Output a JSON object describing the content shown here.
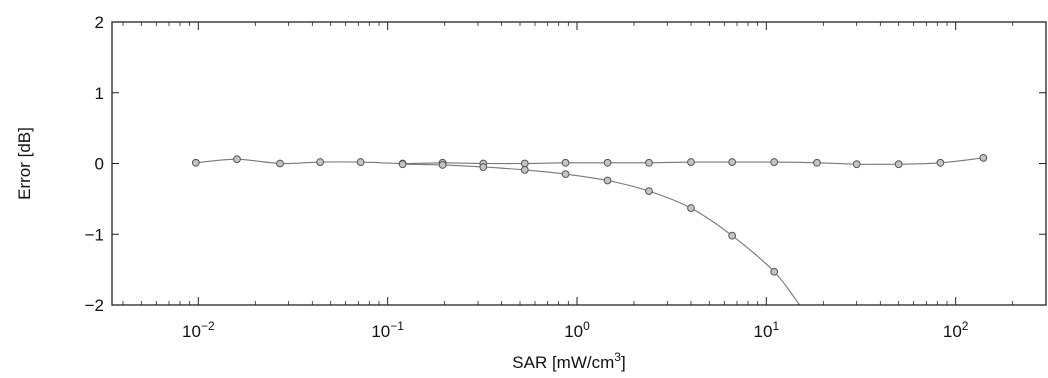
{
  "chart_data": {
    "type": "line",
    "title": "",
    "xlabel_base": "SAR [mW/cm",
    "xlabel_sup": "3",
    "xlabel_tail": "]",
    "ylabel": "Error [dB]",
    "xscale": "log",
    "xlim": [
      0.0035,
      300
    ],
    "ylim": [
      -2,
      2
    ],
    "grid": false,
    "legend": "none",
    "x_ticks": [
      {
        "value": 0.01,
        "base": "10",
        "exp": "−2"
      },
      {
        "value": 0.1,
        "base": "10",
        "exp": "−1"
      },
      {
        "value": 1,
        "base": "10",
        "exp": "0"
      },
      {
        "value": 10,
        "base": "10",
        "exp": "1"
      },
      {
        "value": 100,
        "base": "10",
        "exp": "2"
      }
    ],
    "y_ticks": [
      {
        "value": 2,
        "label": "2"
      },
      {
        "value": 1,
        "label": "1"
      },
      {
        "value": 0,
        "label": "0"
      },
      {
        "value": -1,
        "label": "−1"
      },
      {
        "value": -2,
        "label": "−2"
      }
    ],
    "series": [
      {
        "x": [
          0.0097,
          0.016,
          0.027,
          0.044,
          0.072,
          0.12,
          0.195,
          0.32,
          0.53,
          0.87,
          1.45,
          2.4,
          4.0,
          6.6,
          11,
          18.5,
          30,
          50,
          83,
          140
        ],
        "y": [
          0.01,
          0.06,
          0.0,
          0.02,
          0.02,
          0.0,
          0.01,
          0.0,
          0.0,
          0.01,
          0.01,
          0.01,
          0.02,
          0.02,
          0.02,
          0.01,
          -0.01,
          -0.01,
          0.01,
          0.08
        ],
        "curve_to": null
      },
      {
        "x": [
          0.12,
          0.195,
          0.32,
          0.53,
          0.87,
          1.45,
          2.4,
          4.0,
          6.6,
          11
        ],
        "y": [
          -0.01,
          -0.02,
          -0.05,
          -0.09,
          -0.15,
          -0.24,
          -0.39,
          -0.63,
          -1.02,
          -1.53
        ],
        "curve_to": [
          15,
          -2.0
        ]
      }
    ],
    "colors": {
      "axis": "#222222",
      "line": "#777777",
      "marker_fill": "#c4c4c4",
      "marker_stroke": "#555555"
    }
  }
}
